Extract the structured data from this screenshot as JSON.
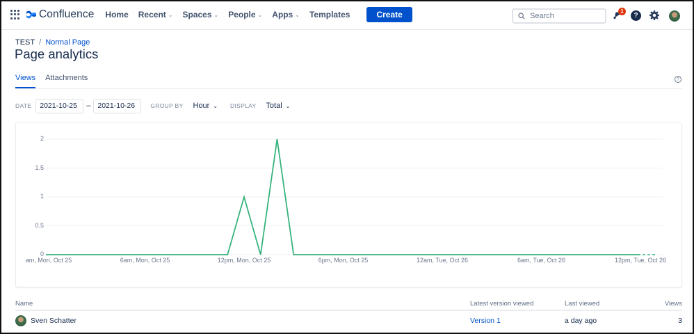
{
  "nav": {
    "product_name": "Confluence",
    "items": [
      {
        "label": "Home",
        "dropdown": false
      },
      {
        "label": "Recent",
        "dropdown": true
      },
      {
        "label": "Spaces",
        "dropdown": true
      },
      {
        "label": "People",
        "dropdown": true
      },
      {
        "label": "Apps",
        "dropdown": true
      },
      {
        "label": "Templates",
        "dropdown": false
      }
    ],
    "create_label": "Create",
    "search_placeholder": "Search",
    "notification_count": "1",
    "help_glyph": "?",
    "chevron": "⌄",
    "icons": [
      "app-switcher-icon",
      "confluence-logo-icon",
      "search-icon",
      "notification-bell-icon",
      "help-icon",
      "settings-gear-icon",
      "user-avatar"
    ]
  },
  "breadcrumb": {
    "space": "TEST",
    "separator": "/",
    "page": "Normal Page"
  },
  "page_title": "Page analytics",
  "tabs": [
    {
      "label": "Views",
      "active": true
    },
    {
      "label": "Attachments",
      "active": false
    }
  ],
  "help_glyph": "?",
  "filters": {
    "date_label": "DATE",
    "date_from": "2021-10-25",
    "date_separator": "–",
    "date_to": "2021-10-26",
    "group_by_label": "GROUP BY",
    "group_by_value": "Hour",
    "display_label": "DISPLAY",
    "display_value": "Total",
    "chevron": "⌄"
  },
  "colors": {
    "accent": "#0052cc",
    "line": "#36b37e",
    "badge": "#de350b"
  },
  "chart_data": {
    "type": "line",
    "title": "",
    "xlabel": "",
    "ylabel": "",
    "ylim": [
      0,
      2
    ],
    "y_ticks": [
      "0",
      "0.5",
      "1",
      "1.5",
      "2"
    ],
    "x_tick_labels": [
      "am, Mon, Oct 25",
      "6am, Mon, Oct 25",
      "12pm, Mon, Oct 25",
      "6pm, Mon, Oct 25",
      "12am, Tue, Oct 26",
      "6am, Tue, Oct 26",
      "12pm, Tue, Oct 26"
    ],
    "x_tick_hours": [
      0,
      6,
      12,
      18,
      24,
      30,
      36
    ],
    "grid": true,
    "legend": "none",
    "series": [
      {
        "name": "Views",
        "x_hours": [
          0,
          11,
          12,
          13,
          14,
          15,
          36
        ],
        "values": [
          0,
          0,
          1,
          0,
          2,
          0,
          0
        ],
        "projected_dashed": {
          "x_hours": [
            36,
            37
          ],
          "values": [
            0,
            0
          ]
        }
      }
    ]
  },
  "table": {
    "headers": [
      "Name",
      "Latest version viewed",
      "Last viewed",
      "Views"
    ],
    "rows": [
      {
        "name": "Sven Schatter",
        "version": "Version 1",
        "last_viewed": "a day ago",
        "views": "3"
      }
    ]
  }
}
